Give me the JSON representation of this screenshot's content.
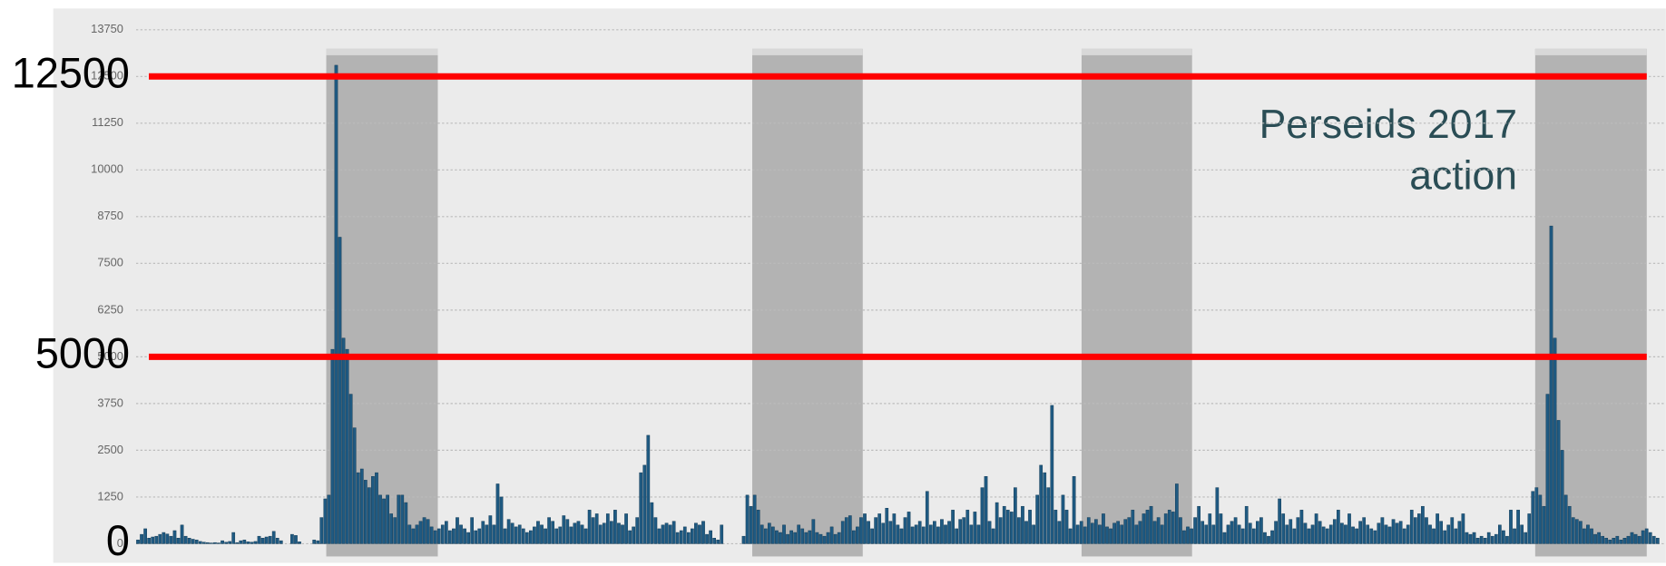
{
  "chart_data": {
    "type": "bar",
    "color": "#1f5a82",
    "ylim": [
      0,
      13750
    ],
    "yticks": [
      0,
      1250,
      2500,
      3750,
      5000,
      6250,
      7500,
      8750,
      10000,
      11250,
      12500,
      13750
    ],
    "grid": true,
    "markers": [
      {
        "value": 12500,
        "line": true
      },
      {
        "value": 5000,
        "line": true
      },
      {
        "value": 0,
        "line": false
      }
    ],
    "marker_color": "#ff0000",
    "annotation": [
      "Perseids 2017",
      "action"
    ],
    "values": [
      100,
      250,
      400,
      150,
      180,
      200,
      250,
      300,
      260,
      200,
      350,
      150,
      500,
      200,
      150,
      120,
      100,
      60,
      40,
      30,
      20,
      30,
      20,
      80,
      40,
      60,
      300,
      30,
      80,
      100,
      50,
      40,
      60,
      200,
      150,
      180,
      200,
      330,
      150,
      80,
      0,
      0,
      250,
      220,
      50,
      0,
      0,
      0,
      100,
      80,
      700,
      1200,
      1300,
      5200,
      12800,
      8200,
      5500,
      5200,
      4000,
      3100,
      1900,
      2000,
      1700,
      1500,
      1800,
      1900,
      1300,
      1200,
      1300,
      800,
      700,
      1300,
      1300,
      1100,
      500,
      400,
      500,
      600,
      700,
      650,
      450,
      350,
      400,
      500,
      600,
      350,
      400,
      700,
      500,
      400,
      300,
      700,
      350,
      400,
      600,
      500,
      750,
      500,
      1600,
      1250,
      400,
      650,
      550,
      450,
      500,
      400,
      300,
      350,
      450,
      600,
      500,
      400,
      700,
      600,
      400,
      450,
      750,
      650,
      450,
      550,
      600,
      500,
      400,
      900,
      700,
      800,
      500,
      550,
      800,
      600,
      900,
      550,
      500,
      800,
      350,
      450,
      700,
      1900,
      2100,
      2900,
      1100,
      700,
      400,
      500,
      550,
      500,
      600,
      300,
      350,
      450,
      300,
      400,
      550,
      500,
      600,
      250,
      350,
      150,
      100,
      500,
      0,
      0,
      0,
      0,
      0,
      200,
      1300,
      1000,
      1300,
      900,
      500,
      400,
      550,
      450,
      350,
      300,
      500,
      250,
      350,
      300,
      500,
      400,
      300,
      350,
      650,
      300,
      250,
      200,
      300,
      450,
      250,
      300,
      600,
      700,
      750,
      350,
      450,
      700,
      800,
      600,
      400,
      700,
      800,
      550,
      950,
      600,
      800,
      500,
      400,
      700,
      850,
      450,
      500,
      600,
      450,
      1400,
      500,
      600,
      450,
      650,
      500,
      600,
      900,
      400,
      650,
      700,
      900,
      500,
      850,
      500,
      1500,
      1800,
      600,
      400,
      1100,
      700,
      1000,
      900,
      850,
      1500,
      700,
      1000,
      600,
      900,
      500,
      1300,
      2100,
      1900,
      1500,
      3700,
      900,
      600,
      1300,
      900,
      400,
      1800,
      500,
      600,
      450,
      700,
      550,
      650,
      500,
      800,
      450,
      400,
      550,
      600,
      500,
      650,
      700,
      900,
      500,
      600,
      800,
      900,
      1000,
      600,
      700,
      500,
      800,
      900,
      850,
      1600,
      700,
      350,
      450,
      400,
      700,
      1000,
      600,
      500,
      800,
      500,
      1500,
      800,
      300,
      500,
      600,
      700,
      500,
      400,
      1000,
      550,
      400,
      600,
      700,
      300,
      200,
      350,
      600,
      1200,
      800,
      500,
      650,
      400,
      700,
      900,
      550,
      400,
      500,
      800,
      600,
      450,
      400,
      500,
      650,
      900,
      550,
      500,
      800,
      450,
      400,
      600,
      700,
      500,
      400,
      350,
      550,
      700,
      500,
      450,
      650,
      550,
      600,
      400,
      500,
      900,
      700,
      800,
      1000,
      700,
      500,
      400,
      800,
      600,
      350,
      500,
      700,
      400,
      600,
      800,
      300,
      250,
      300,
      150,
      200,
      150,
      300,
      200,
      250,
      500,
      350,
      200,
      900,
      400,
      900,
      500,
      300,
      800,
      1400,
      1500,
      1300,
      1000,
      4000,
      8500,
      5500,
      3300,
      2500,
      1300,
      1000,
      700,
      650,
      600,
      400,
      500,
      400,
      250,
      300,
      200,
      150,
      100,
      150,
      200,
      100,
      150,
      200,
      300,
      250,
      200,
      350,
      400,
      300,
      200,
      150
    ]
  }
}
